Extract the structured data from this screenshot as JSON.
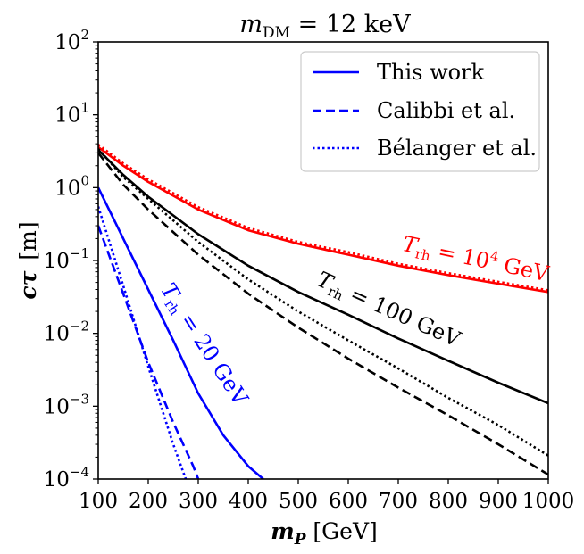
{
  "chart_data": {
    "type": "line",
    "title": "m_DM = 12 keV",
    "title_parts": {
      "main": "m",
      "sub": "DM",
      "rest": " = 12 keV"
    },
    "xlabel": "m_P [GeV]",
    "xlabel_parts": {
      "main": "m",
      "sub": "P",
      "unit": " [GeV]"
    },
    "ylabel": "cτ [m]",
    "ylabel_parts": {
      "main": "cτ",
      "unit": "[m]"
    },
    "xlim": [
      100,
      1000
    ],
    "ylim": [
      0.0001,
      100
    ],
    "yscale": "log",
    "grid": false,
    "legend_placement": "top-right",
    "x_ticks": [
      100,
      200,
      300,
      400,
      500,
      600,
      700,
      800,
      900,
      1000
    ],
    "y_ticks": [
      {
        "value": 0.0001,
        "base": "10",
        "exp": "−4"
      },
      {
        "value": 0.001,
        "base": "10",
        "exp": "−3"
      },
      {
        "value": 0.01,
        "base": "10",
        "exp": "−2"
      },
      {
        "value": 0.1,
        "base": "10",
        "exp": "−1"
      },
      {
        "value": 1,
        "base": "10",
        "exp": "0"
      },
      {
        "value": 10,
        "base": "10",
        "exp": "1"
      },
      {
        "value": 100,
        "base": "10",
        "exp": "2"
      }
    ],
    "legend": [
      {
        "label": "This work",
        "style": "solid"
      },
      {
        "label": "Calibbi et al.",
        "style": "dashed"
      },
      {
        "label": "Bélanger et al.",
        "style": "dotted"
      }
    ],
    "annotations": [
      {
        "text": "T_rh = 10^4 GeV",
        "parts": {
          "main": "T",
          "sub": "rh",
          "rest": " = 10",
          "sup": "4",
          "tail": " GeV"
        },
        "color": "#ff0000"
      },
      {
        "text": "T_rh = 100 GeV",
        "parts": {
          "main": "T",
          "sub": "rh",
          "rest": " = 100 GeV"
        },
        "color": "#000000"
      },
      {
        "text": "T_rh = 20 GeV",
        "parts": {
          "main": "T",
          "sub": "rh",
          "rest": " = 20 GeV"
        },
        "color": "#0000ff"
      }
    ],
    "colors": {
      "Trh_1e4": "#ff0000",
      "Trh_100": "#000000",
      "Trh_20": "#0000ff",
      "legend": "#0000ff"
    },
    "series": [
      {
        "group": "Trh_1e4",
        "style": "solid",
        "color": "#ff0000",
        "x": [
          100,
          150,
          200,
          300,
          400,
          500,
          600,
          700,
          800,
          900,
          1000
        ],
        "y": [
          3.6,
          2.0,
          1.2,
          0.5,
          0.26,
          0.17,
          0.12,
          0.085,
          0.063,
          0.048,
          0.037
        ]
      },
      {
        "group": "Trh_1e4",
        "style": "dotted",
        "color": "#ff0000",
        "x": [
          100,
          150,
          200,
          300,
          400,
          500,
          600,
          700,
          800,
          900,
          1000
        ],
        "y": [
          3.9,
          2.15,
          1.3,
          0.54,
          0.28,
          0.18,
          0.13,
          0.09,
          0.067,
          0.051,
          0.039
        ]
      },
      {
        "group": "Trh_100",
        "style": "solid",
        "color": "#000000",
        "x": [
          100,
          150,
          200,
          300,
          400,
          500,
          600,
          700,
          800,
          900,
          1000
        ],
        "y": [
          3.3,
          1.5,
          0.75,
          0.23,
          0.085,
          0.037,
          0.018,
          0.0085,
          0.0042,
          0.0021,
          0.0011
        ]
      },
      {
        "group": "Trh_100",
        "style": "dashed",
        "color": "#000000",
        "x": [
          100,
          150,
          200,
          300,
          400,
          500,
          600,
          700,
          800,
          900,
          1000
        ],
        "y": [
          3.0,
          1.1,
          0.5,
          0.12,
          0.035,
          0.012,
          0.0045,
          0.0018,
          0.00075,
          0.0003,
          0.000115
        ]
      },
      {
        "group": "Trh_100",
        "style": "dotted",
        "color": "#000000",
        "x": [
          100,
          150,
          200,
          300,
          400,
          500,
          600,
          700,
          800,
          900,
          1000
        ],
        "y": [
          3.4,
          1.4,
          0.7,
          0.18,
          0.055,
          0.02,
          0.008,
          0.0033,
          0.0013,
          0.00055,
          0.00021
        ]
      },
      {
        "group": "Trh_20",
        "style": "solid",
        "color": "#0000ff",
        "x": [
          100,
          150,
          200,
          250,
          300,
          350,
          400,
          430
        ],
        "y": [
          1.0,
          0.2,
          0.04,
          0.008,
          0.0015,
          0.0004,
          0.00015,
          0.0001
        ]
      },
      {
        "group": "Trh_20",
        "style": "dashed",
        "color": "#0000ff",
        "x": [
          100,
          150,
          200,
          250,
          290,
          300
        ],
        "y": [
          0.3,
          0.035,
          0.004,
          0.0006,
          0.00015,
          0.0001
        ]
      },
      {
        "group": "Trh_20",
        "style": "dotted",
        "color": "#0000ff",
        "x": [
          100,
          150,
          200,
          250,
          275
        ],
        "y": [
          0.55,
          0.045,
          0.0035,
          0.0003,
          0.0001
        ]
      }
    ]
  }
}
